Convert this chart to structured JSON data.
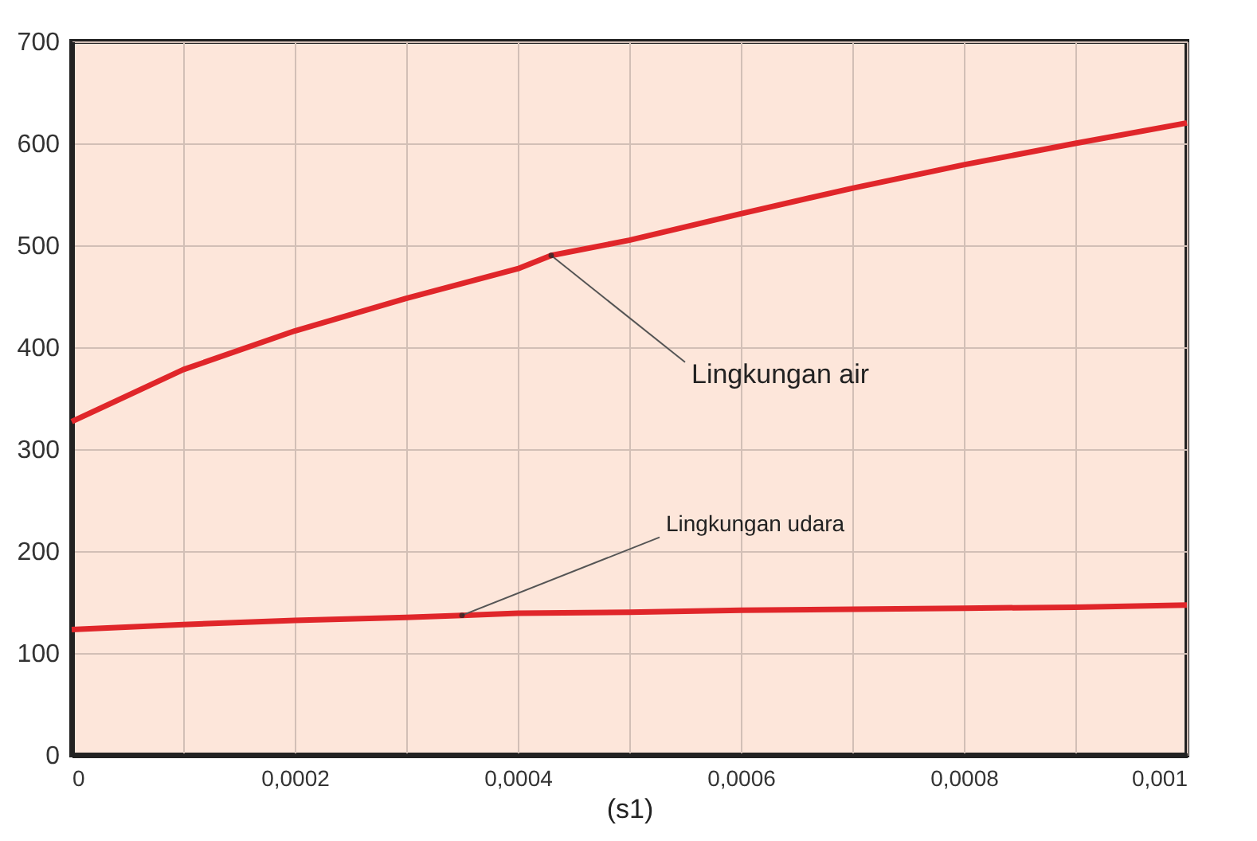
{
  "chart_data": {
    "type": "line",
    "xlabel": "(s1)",
    "series": [
      {
        "name": "Lingkungan air",
        "color": "#e0262a",
        "x": [
          0,
          0.0001,
          0.0002,
          0.0003,
          0.0004,
          0.00043,
          0.0005,
          0.0006,
          0.0007,
          0.0008,
          0.0009,
          0.001
        ],
        "values": [
          327,
          378,
          416,
          448,
          477,
          490,
          505,
          531,
          556,
          579,
          600,
          620
        ]
      },
      {
        "name": "Lingkungan udara",
        "color": "#e0262a",
        "x": [
          0,
          0.0001,
          0.0002,
          0.0003,
          0.00035,
          0.0004,
          0.0005,
          0.0006,
          0.0007,
          0.0008,
          0.0009,
          0.001
        ],
        "values": [
          123,
          128,
          132,
          135,
          137,
          139,
          140,
          142,
          143,
          144,
          145,
          147
        ]
      }
    ],
    "xlim": [
      0,
      0.001
    ],
    "xticks": [
      0,
      {
        "value": 0.0001,
        "label": null
      },
      {
        "value": 0.0002,
        "label": "0,0002"
      },
      {
        "value": 0.0003,
        "label": null
      },
      {
        "value": 0.0004,
        "label": "0,0004"
      },
      {
        "value": 0.0005,
        "label": null
      },
      {
        "value": 0.0006,
        "label": "0,0006"
      },
      {
        "value": 0.0007,
        "label": null
      },
      {
        "value": 0.0008,
        "label": "0,0008"
      },
      {
        "value": 0.0009,
        "label": null
      },
      {
        "value": 0.001,
        "label": "0,001"
      }
    ],
    "ylim": [
      0,
      700
    ],
    "yticks": [
      0,
      100,
      200,
      300,
      400,
      500,
      600,
      700
    ],
    "grid": true,
    "marker": "none",
    "line_style": "solid"
  }
}
